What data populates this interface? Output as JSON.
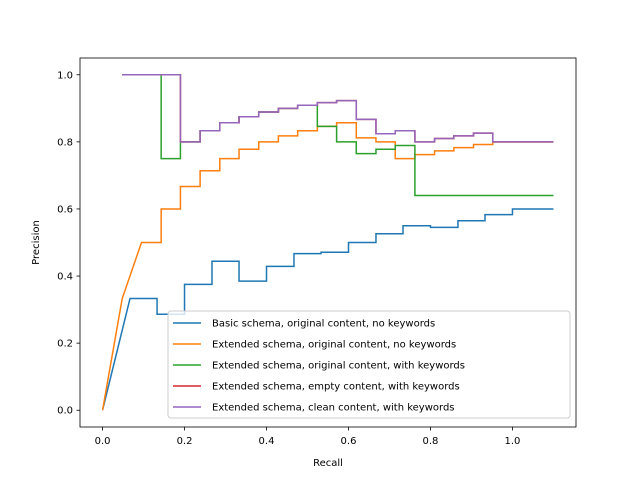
{
  "chart_data": {
    "type": "line",
    "xlabel": "Recall",
    "ylabel": "Precision",
    "xlim": [
      -0.055,
      1.155
    ],
    "ylim": [
      -0.05,
      1.05
    ],
    "xticks": [
      0.0,
      0.2,
      0.4,
      0.6,
      0.8,
      1.0
    ],
    "xtick_labels": [
      "0.0",
      "0.2",
      "0.4",
      "0.6",
      "0.8",
      "1.0"
    ],
    "yticks": [
      0.0,
      0.2,
      0.4,
      0.6,
      0.8,
      1.0
    ],
    "ytick_labels": [
      "0.0",
      "0.2",
      "0.4",
      "0.6",
      "0.8",
      "1.0"
    ],
    "grid": false,
    "legend_position": "lower-right",
    "series": [
      {
        "name": "Basic schema, original content, no keywords",
        "color": "#1f77b4",
        "points": [
          [
            0.0,
            0.0
          ],
          [
            0.067,
            0.333
          ],
          [
            0.133,
            0.333
          ],
          [
            0.133,
            0.286
          ],
          [
            0.2,
            0.286
          ],
          [
            0.2,
            0.375
          ],
          [
            0.267,
            0.375
          ],
          [
            0.267,
            0.444
          ],
          [
            0.333,
            0.444
          ],
          [
            0.333,
            0.385
          ],
          [
            0.4,
            0.385
          ],
          [
            0.4,
            0.429
          ],
          [
            0.467,
            0.429
          ],
          [
            0.467,
            0.467
          ],
          [
            0.533,
            0.467
          ],
          [
            0.533,
            0.471
          ],
          [
            0.6,
            0.471
          ],
          [
            0.6,
            0.5
          ],
          [
            0.667,
            0.5
          ],
          [
            0.667,
            0.526
          ],
          [
            0.733,
            0.526
          ],
          [
            0.733,
            0.55
          ],
          [
            0.8,
            0.55
          ],
          [
            0.8,
            0.545
          ],
          [
            0.867,
            0.545
          ],
          [
            0.867,
            0.565
          ],
          [
            0.933,
            0.565
          ],
          [
            0.933,
            0.583
          ],
          [
            1.0,
            0.583
          ],
          [
            1.0,
            0.6
          ],
          [
            1.1,
            0.6
          ]
        ]
      },
      {
        "name": "Extended schema, original content, no keywords",
        "color": "#ff7f0e",
        "points": [
          [
            0.0,
            0.0
          ],
          [
            0.048,
            0.333
          ],
          [
            0.095,
            0.5
          ],
          [
            0.143,
            0.5
          ],
          [
            0.143,
            0.6
          ],
          [
            0.19,
            0.6
          ],
          [
            0.19,
            0.667
          ],
          [
            0.238,
            0.667
          ],
          [
            0.238,
            0.714
          ],
          [
            0.286,
            0.714
          ],
          [
            0.286,
            0.75
          ],
          [
            0.333,
            0.75
          ],
          [
            0.333,
            0.778
          ],
          [
            0.381,
            0.778
          ],
          [
            0.381,
            0.8
          ],
          [
            0.429,
            0.8
          ],
          [
            0.429,
            0.818
          ],
          [
            0.476,
            0.818
          ],
          [
            0.476,
            0.833
          ],
          [
            0.524,
            0.833
          ],
          [
            0.524,
            0.846
          ],
          [
            0.571,
            0.846
          ],
          [
            0.571,
            0.857
          ],
          [
            0.619,
            0.857
          ],
          [
            0.619,
            0.812
          ],
          [
            0.667,
            0.812
          ],
          [
            0.667,
            0.8
          ],
          [
            0.714,
            0.8
          ],
          [
            0.714,
            0.75
          ],
          [
            0.762,
            0.75
          ],
          [
            0.762,
            0.762
          ],
          [
            0.81,
            0.762
          ],
          [
            0.81,
            0.773
          ],
          [
            0.857,
            0.773
          ],
          [
            0.857,
            0.783
          ],
          [
            0.905,
            0.783
          ],
          [
            0.905,
            0.792
          ],
          [
            0.952,
            0.792
          ],
          [
            0.952,
            0.8
          ],
          [
            1.1,
            0.8
          ]
        ]
      },
      {
        "name": "Extended schema, original content, with keywords",
        "color": "#2ca02c",
        "points": [
          [
            0.048,
            1.0
          ],
          [
            0.143,
            1.0
          ],
          [
            0.143,
            0.75
          ],
          [
            0.19,
            0.75
          ],
          [
            0.19,
            0.8
          ],
          [
            0.238,
            0.8
          ],
          [
            0.238,
            0.833
          ],
          [
            0.286,
            0.833
          ],
          [
            0.286,
            0.857
          ],
          [
            0.333,
            0.857
          ],
          [
            0.333,
            0.875
          ],
          [
            0.381,
            0.875
          ],
          [
            0.381,
            0.889
          ],
          [
            0.429,
            0.889
          ],
          [
            0.429,
            0.9
          ],
          [
            0.476,
            0.9
          ],
          [
            0.476,
            0.909
          ],
          [
            0.524,
            0.909
          ],
          [
            0.524,
            0.846
          ],
          [
            0.571,
            0.846
          ],
          [
            0.571,
            0.8
          ],
          [
            0.619,
            0.8
          ],
          [
            0.619,
            0.765
          ],
          [
            0.667,
            0.765
          ],
          [
            0.667,
            0.778
          ],
          [
            0.714,
            0.778
          ],
          [
            0.714,
            0.789
          ],
          [
            0.762,
            0.789
          ],
          [
            0.762,
            0.64
          ],
          [
            1.1,
            0.64
          ]
        ]
      },
      {
        "name": "Extended schema, empty content, with keywords",
        "color": "#d62728",
        "points": [
          [
            0.048,
            1.0
          ],
          [
            0.19,
            1.0
          ],
          [
            0.19,
            0.8
          ],
          [
            0.238,
            0.8
          ],
          [
            0.238,
            0.833
          ],
          [
            0.286,
            0.833
          ],
          [
            0.286,
            0.857
          ],
          [
            0.333,
            0.857
          ],
          [
            0.333,
            0.875
          ],
          [
            0.381,
            0.875
          ],
          [
            0.381,
            0.889
          ],
          [
            0.429,
            0.889
          ],
          [
            0.429,
            0.9
          ],
          [
            0.476,
            0.9
          ],
          [
            0.476,
            0.909
          ],
          [
            0.524,
            0.909
          ],
          [
            0.524,
            0.917
          ],
          [
            0.571,
            0.917
          ],
          [
            0.571,
            0.923
          ],
          [
            0.619,
            0.923
          ],
          [
            0.619,
            0.867
          ],
          [
            0.667,
            0.867
          ],
          [
            0.667,
            0.824
          ],
          [
            0.714,
            0.824
          ],
          [
            0.714,
            0.833
          ],
          [
            0.762,
            0.833
          ],
          [
            0.762,
            0.8
          ],
          [
            0.81,
            0.8
          ],
          [
            0.81,
            0.81
          ],
          [
            0.857,
            0.81
          ],
          [
            0.857,
            0.818
          ],
          [
            0.905,
            0.818
          ],
          [
            0.905,
            0.826
          ],
          [
            0.952,
            0.826
          ],
          [
            0.952,
            0.8
          ],
          [
            1.1,
            0.8
          ]
        ]
      },
      {
        "name": "Extended schema, clean content, with keywords",
        "color": "#9467bd",
        "points": [
          [
            0.048,
            1.0
          ],
          [
            0.19,
            1.0
          ],
          [
            0.19,
            0.8
          ],
          [
            0.238,
            0.8
          ],
          [
            0.238,
            0.833
          ],
          [
            0.286,
            0.833
          ],
          [
            0.286,
            0.857
          ],
          [
            0.333,
            0.857
          ],
          [
            0.333,
            0.875
          ],
          [
            0.381,
            0.875
          ],
          [
            0.381,
            0.889
          ],
          [
            0.429,
            0.889
          ],
          [
            0.429,
            0.9
          ],
          [
            0.476,
            0.9
          ],
          [
            0.476,
            0.909
          ],
          [
            0.524,
            0.909
          ],
          [
            0.524,
            0.917
          ],
          [
            0.571,
            0.917
          ],
          [
            0.571,
            0.923
          ],
          [
            0.619,
            0.923
          ],
          [
            0.619,
            0.867
          ],
          [
            0.667,
            0.867
          ],
          [
            0.667,
            0.824
          ],
          [
            0.714,
            0.824
          ],
          [
            0.714,
            0.833
          ],
          [
            0.762,
            0.833
          ],
          [
            0.762,
            0.8
          ],
          [
            0.81,
            0.8
          ],
          [
            0.81,
            0.81
          ],
          [
            0.857,
            0.81
          ],
          [
            0.857,
            0.818
          ],
          [
            0.905,
            0.818
          ],
          [
            0.905,
            0.826
          ],
          [
            0.952,
            0.826
          ],
          [
            0.952,
            0.8
          ],
          [
            1.1,
            0.8
          ]
        ]
      }
    ]
  }
}
